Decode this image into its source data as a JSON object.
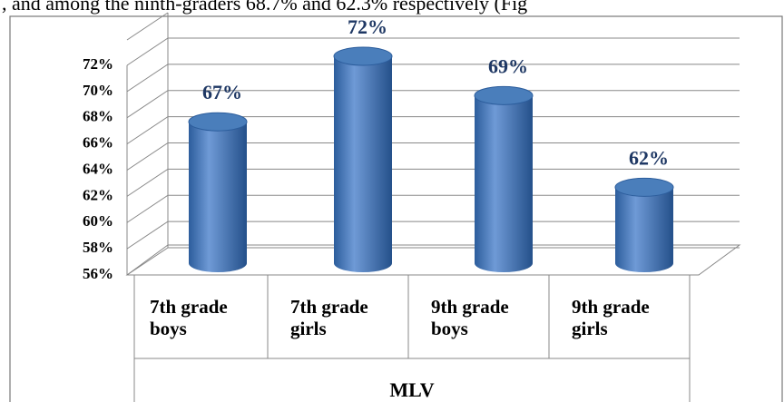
{
  "text_above": ", and among the ninth-graders 68.7% and 62.3% respectively (Fig",
  "chart_data": {
    "type": "bar",
    "x_label": "MLV",
    "categories": [
      "7th grade boys",
      "7th grade girls",
      "9th grade boys",
      "9th grade girls"
    ],
    "values": [
      67,
      72,
      69,
      62
    ],
    "value_labels": [
      "67%",
      "72%",
      "69%",
      "62%"
    ],
    "color": "#4a7ebb",
    "ylim": [
      56,
      72
    ],
    "yticks": [
      {
        "value": 56,
        "label": "56%"
      },
      {
        "value": 58,
        "label": "58%"
      },
      {
        "value": 60,
        "label": "60%"
      },
      {
        "value": 62,
        "label": "62%"
      },
      {
        "value": 64,
        "label": "64%"
      },
      {
        "value": 66,
        "label": "66%"
      },
      {
        "value": 68,
        "label": "68%"
      },
      {
        "value": 70,
        "label": "70%"
      },
      {
        "value": 72,
        "label": "72%"
      }
    ],
    "grid": true
  }
}
